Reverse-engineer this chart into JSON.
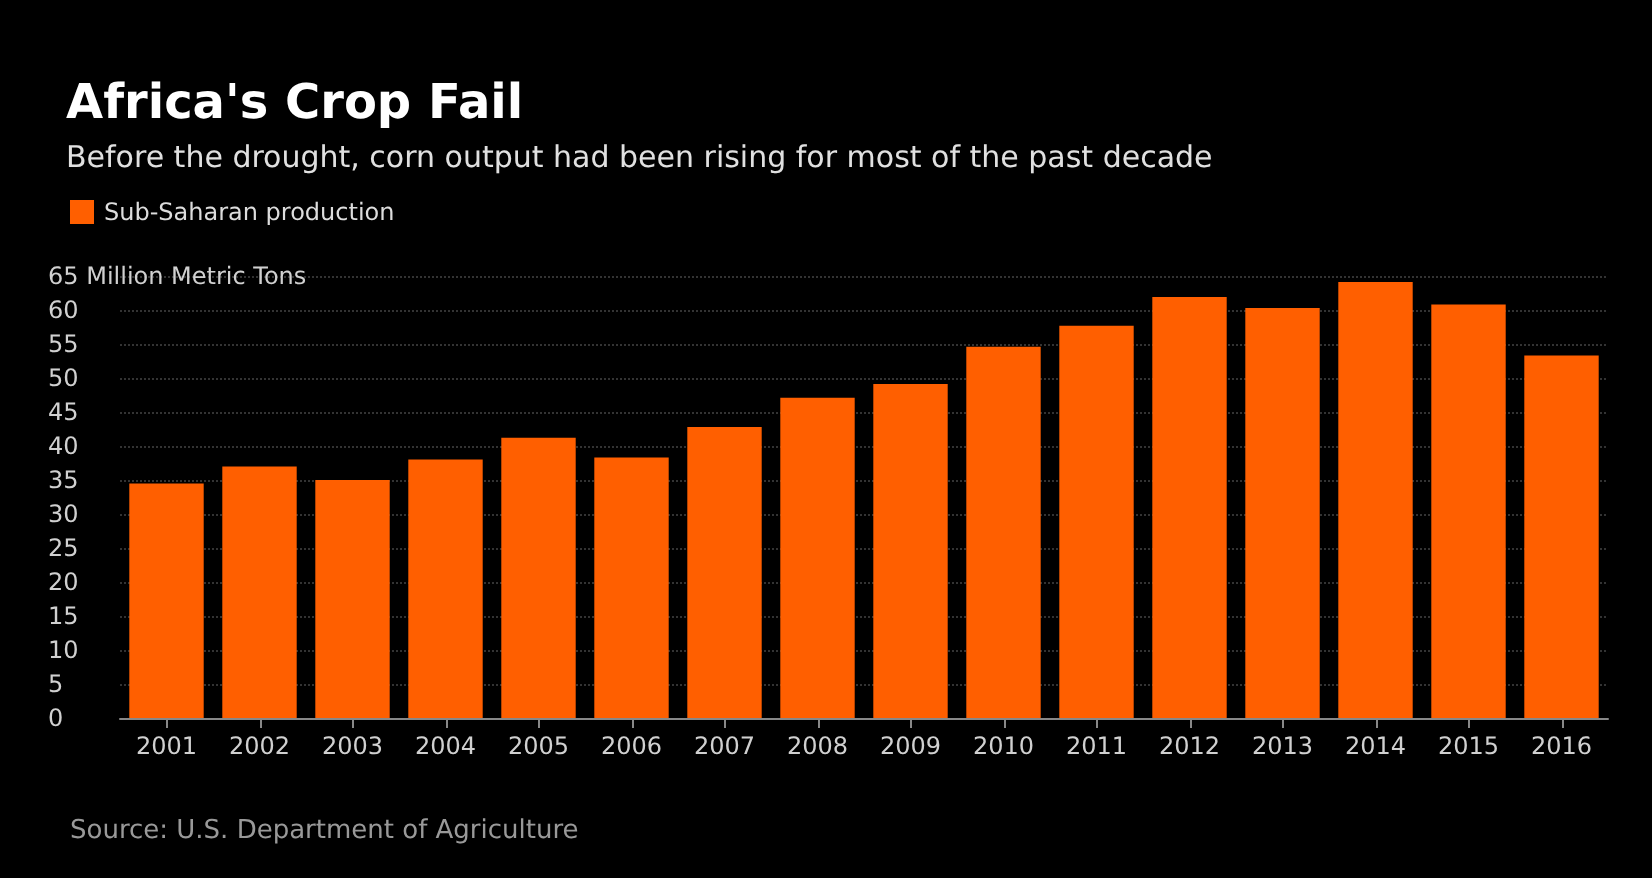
{
  "chart_data": {
    "type": "bar",
    "title": "Africa's Crop Fail",
    "subtitle": "Before the drought, corn output had been rising for most of the past decade",
    "categories": [
      "2001",
      "2002",
      "2003",
      "2004",
      "2005",
      "2006",
      "2007",
      "2008",
      "2009",
      "2010",
      "2011",
      "2012",
      "2013",
      "2014",
      "2015",
      "2016"
    ],
    "series": [
      {
        "name": "Sub-Saharan production",
        "color": "#ff5f00",
        "values": [
          34.5,
          37.0,
          35.0,
          38.0,
          41.2,
          38.3,
          42.8,
          47.1,
          49.1,
          54.6,
          57.7,
          61.9,
          60.3,
          64.1,
          60.8,
          53.3
        ]
      }
    ],
    "ylim": [
      0,
      65
    ],
    "yticks": [
      0,
      5,
      10,
      15,
      20,
      25,
      30,
      35,
      40,
      45,
      50,
      55,
      60,
      {
        "value": 65,
        "label": "65 Million Metric Tons"
      }
    ],
    "grid": "y",
    "legend": "top left",
    "annotations": [
      "Source: U.S. Department of Agriculture"
    ]
  }
}
